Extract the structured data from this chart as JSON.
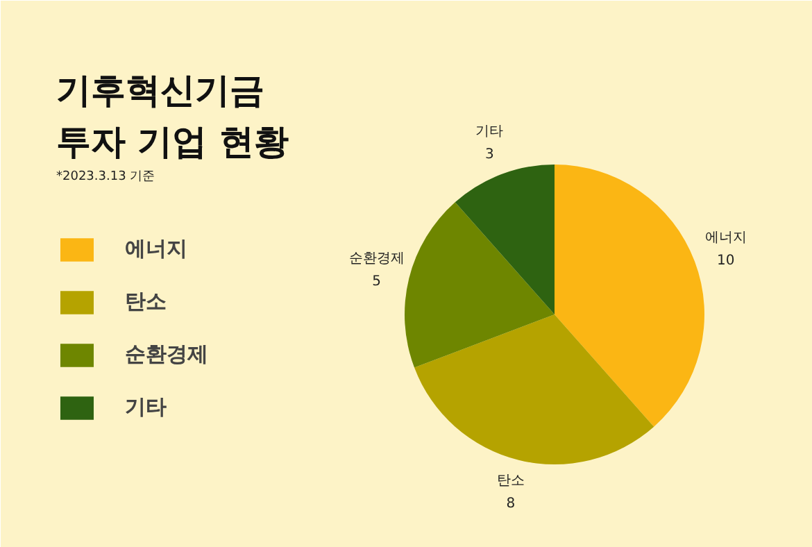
{
  "chart_data": {
    "type": "pie",
    "title": "기후혁신기금\n투자 기업 현황",
    "subtitle": "*2023.3.13 기준",
    "categories": [
      "에너지",
      "탄소",
      "순환경제",
      "기타"
    ],
    "values": [
      10,
      8,
      5,
      3
    ],
    "colors": [
      "#fbb614",
      "#b5a300",
      "#6e8600",
      "#2e6311"
    ],
    "data_labels": true,
    "legend": "left"
  }
}
